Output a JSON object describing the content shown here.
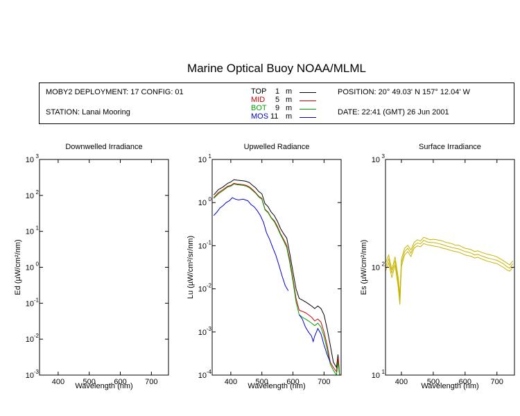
{
  "title": "Marine Optical Buoy NOAA/MLML",
  "info": {
    "deployment": "MOBY2 DEPLOYMENT: 17 CONFIG: 01",
    "station": "STATION: Lanai Mooring",
    "position": "POSITION: 20° 49.03' N   157° 12.04' W",
    "date": "DATE: 22:41 (GMT) 26 Jun 2001"
  },
  "legend": [
    {
      "name": "TOP",
      "depth": "1",
      "unit": "m",
      "color": "#000000"
    },
    {
      "name": "MID",
      "depth": "5",
      "unit": "m",
      "color": "#cc0000"
    },
    {
      "name": "BOT",
      "depth": "9",
      "unit": "m",
      "color": "#00a000"
    },
    {
      "name": "MOS",
      "depth": "11",
      "unit": "m",
      "color": "#0000cc"
    }
  ],
  "chart_data": [
    {
      "type": "line",
      "title": "Downwelled Irradiance",
      "xlabel": "Wavelength (nm)",
      "ylabel": "Ed  (µW/cm²/nm)",
      "xlim": [
        340,
        755
      ],
      "ylim": [
        0.001,
        1000
      ],
      "yscale": "log",
      "xticks": [
        400,
        500,
        600,
        700
      ],
      "yticks": [
        {
          "b": "10",
          "e": "-3"
        },
        {
          "b": "10",
          "e": "-2"
        },
        {
          "b": "10",
          "e": "-1"
        },
        {
          "b": "10",
          "e": "0"
        },
        {
          "b": "10",
          "e": "1"
        },
        {
          "b": "10",
          "e": "2"
        },
        {
          "b": "10",
          "e": "3"
        }
      ],
      "series": []
    },
    {
      "type": "line",
      "title": "Upwelled Radiance",
      "xlabel": "Wavelength (nm)",
      "ylabel": "Lu  (µW/cm²/sr/nm)",
      "xlim": [
        340,
        755
      ],
      "ylim": [
        0.0001,
        10
      ],
      "yscale": "log",
      "xticks": [
        400,
        500,
        600,
        700
      ],
      "yticks": [
        {
          "b": "10",
          "e": "-4"
        },
        {
          "b": "10",
          "e": "-3"
        },
        {
          "b": "10",
          "e": "-2"
        },
        {
          "b": "10",
          "e": "-1"
        },
        {
          "b": "10",
          "e": "0"
        },
        {
          "b": "10",
          "e": "1"
        }
      ],
      "series": [
        {
          "name": "TOP",
          "color": "#000000",
          "x": [
            345,
            360,
            375,
            390,
            400,
            410,
            420,
            440,
            450,
            460,
            470,
            480,
            490,
            500,
            510,
            520,
            530,
            540,
            550,
            560,
            570,
            580,
            590,
            600,
            610,
            620,
            630,
            640,
            650,
            660,
            670,
            680,
            690,
            700,
            710,
            720,
            730,
            740,
            745,
            750
          ],
          "y": [
            1.5,
            2.0,
            2.3,
            2.8,
            3.0,
            3.4,
            3.3,
            3.2,
            3.1,
            2.9,
            2.5,
            2.2,
            1.8,
            1.6,
            0.95,
            0.8,
            0.6,
            0.5,
            0.37,
            0.25,
            0.19,
            0.15,
            0.065,
            0.025,
            0.01,
            0.006,
            0.0055,
            0.005,
            0.0045,
            0.004,
            0.0035,
            0.004,
            0.0035,
            0.0025,
            0.0012,
            0.0005,
            0.0002,
            0.00015,
            0.0003,
            0.0001
          ]
        },
        {
          "name": "MID",
          "color": "#cc0000",
          "x": [
            345,
            360,
            375,
            390,
            400,
            410,
            420,
            440,
            450,
            460,
            470,
            480,
            490,
            500,
            510,
            520,
            530,
            540,
            550,
            560,
            570,
            580,
            590,
            600,
            610,
            620,
            630,
            640,
            650,
            660,
            670,
            680,
            690,
            700,
            710,
            720,
            730,
            740,
            745,
            750
          ],
          "y": [
            1.3,
            1.7,
            2.0,
            2.4,
            2.5,
            2.8,
            2.7,
            2.6,
            2.5,
            2.3,
            2.0,
            1.7,
            1.4,
            1.25,
            0.7,
            0.6,
            0.45,
            0.38,
            0.28,
            0.19,
            0.14,
            0.1,
            0.045,
            0.017,
            0.006,
            0.0032,
            0.003,
            0.0028,
            0.0025,
            0.0022,
            0.0018,
            0.002,
            0.0017,
            0.001,
            0.0005,
            0.0002,
            0.00015,
            0.00012,
            0.00025,
            0.0001
          ]
        },
        {
          "name": "BOT",
          "color": "#00a000",
          "x": [
            345,
            360,
            375,
            390,
            400,
            410,
            420,
            440,
            450,
            460,
            470,
            480,
            490,
            500,
            510,
            520,
            530,
            540,
            550,
            560,
            570,
            580,
            590,
            600,
            610,
            620,
            630,
            640,
            650,
            660,
            670,
            680,
            690,
            700,
            710,
            720,
            730,
            740,
            745,
            750
          ],
          "y": [
            1.25,
            1.6,
            1.9,
            2.3,
            2.4,
            2.7,
            2.6,
            2.5,
            2.4,
            2.2,
            1.9,
            1.65,
            1.35,
            1.2,
            0.68,
            0.58,
            0.44,
            0.36,
            0.26,
            0.18,
            0.13,
            0.09,
            0.04,
            0.015,
            0.005,
            0.0025,
            0.0022,
            0.002,
            0.0018,
            0.0016,
            0.0014,
            0.0016,
            0.0013,
            0.0008,
            0.0004,
            0.00018,
            0.00013,
            0.0001,
            0.0002,
            0.0001
          ]
        },
        {
          "name": "MOS",
          "color": "#0000cc",
          "x": [
            345,
            355,
            365,
            375,
            385,
            395,
            405,
            415,
            425,
            440,
            455,
            465,
            475,
            485,
            495,
            505,
            515,
            525,
            535,
            545,
            555,
            565,
            575,
            585
          ],
          "y": [
            0.5,
            0.6,
            0.75,
            0.85,
            1.0,
            1.1,
            1.3,
            1.2,
            1.15,
            1.2,
            1.1,
            0.9,
            0.8,
            0.65,
            0.5,
            0.35,
            0.2,
            0.14,
            0.09,
            0.06,
            0.035,
            0.02,
            0.012,
            0.009
          ]
        },
        {
          "name": "MOS",
          "color": "#0000cc",
          "x": [
            620,
            630,
            640,
            650,
            660,
            665,
            670,
            680,
            690,
            700,
            710,
            720
          ],
          "y": [
            0.0025,
            0.002,
            0.0013,
            0.001,
            0.0008,
            0.0006,
            0.0008,
            0.0012,
            0.0009,
            0.0005,
            0.0003,
            0.0002
          ]
        }
      ]
    },
    {
      "type": "line",
      "title": "Surface Irradiance",
      "xlabel": "Wavelength (nm)",
      "ylabel": "Es  (µW/cm²/nm)",
      "xlim": [
        350,
        755
      ],
      "ylim": [
        10,
        1000
      ],
      "yscale": "log",
      "xticks": [
        400,
        500,
        600,
        700
      ],
      "yticks": [
        {
          "b": "10",
          "e": "1"
        },
        {
          "b": "10",
          "e": "2"
        },
        {
          "b": "10",
          "e": "3"
        }
      ],
      "series": [
        {
          "name": "",
          "color": "#c8b400",
          "x": [
            350,
            360,
            370,
            380,
            390,
            395,
            400,
            410,
            420,
            430,
            440,
            450,
            460,
            470,
            480,
            490,
            500,
            510,
            520,
            530,
            540,
            550,
            560,
            570,
            580,
            590,
            600,
            610,
            620,
            630,
            640,
            650,
            660,
            670,
            680,
            690,
            700,
            710,
            720,
            730,
            740,
            750
          ],
          "y": [
            110,
            130,
            95,
            125,
            80,
            55,
            120,
            150,
            160,
            145,
            170,
            180,
            175,
            190,
            185,
            180,
            182,
            180,
            178,
            175,
            170,
            168,
            165,
            160,
            160,
            155,
            150,
            148,
            145,
            140,
            142,
            138,
            135,
            132,
            130,
            128,
            125,
            120,
            115,
            110,
            105,
            115
          ]
        },
        {
          "name": "",
          "color": "#c8b400",
          "x": [
            350,
            360,
            370,
            380,
            390,
            395,
            400,
            410,
            420,
            430,
            440,
            450,
            460,
            470,
            480,
            490,
            500,
            510,
            520,
            530,
            540,
            550,
            560,
            570,
            580,
            590,
            600,
            610,
            620,
            630,
            640,
            650,
            660,
            670,
            680,
            690,
            700,
            710,
            720,
            730,
            740,
            750
          ],
          "y": [
            100,
            120,
            88,
            115,
            72,
            50,
            110,
            140,
            150,
            135,
            160,
            168,
            165,
            178,
            172,
            170,
            170,
            168,
            165,
            162,
            158,
            155,
            152,
            150,
            148,
            144,
            140,
            138,
            135,
            130,
            132,
            128,
            125,
            122,
            120,
            118,
            116,
            112,
            108,
            102,
            98,
            108
          ]
        },
        {
          "name": "",
          "color": "#c8b400",
          "x": [
            350,
            360,
            370,
            380,
            390,
            395,
            400,
            410,
            420,
            430,
            440,
            450,
            460,
            470,
            480,
            490,
            500,
            510,
            520,
            530,
            540,
            550,
            560,
            570,
            580,
            590,
            600,
            610,
            620,
            630,
            640,
            650,
            660,
            670,
            680,
            690,
            700,
            710,
            720,
            730,
            740,
            750
          ],
          "y": [
            92,
            110,
            80,
            105,
            65,
            45,
            102,
            130,
            140,
            126,
            150,
            158,
            155,
            166,
            162,
            160,
            158,
            156,
            154,
            150,
            148,
            145,
            142,
            140,
            138,
            134,
            130,
            128,
            126,
            122,
            124,
            120,
            117,
            114,
            112,
            110,
            108,
            104,
            100,
            95,
            92,
            100
          ]
        }
      ]
    }
  ]
}
